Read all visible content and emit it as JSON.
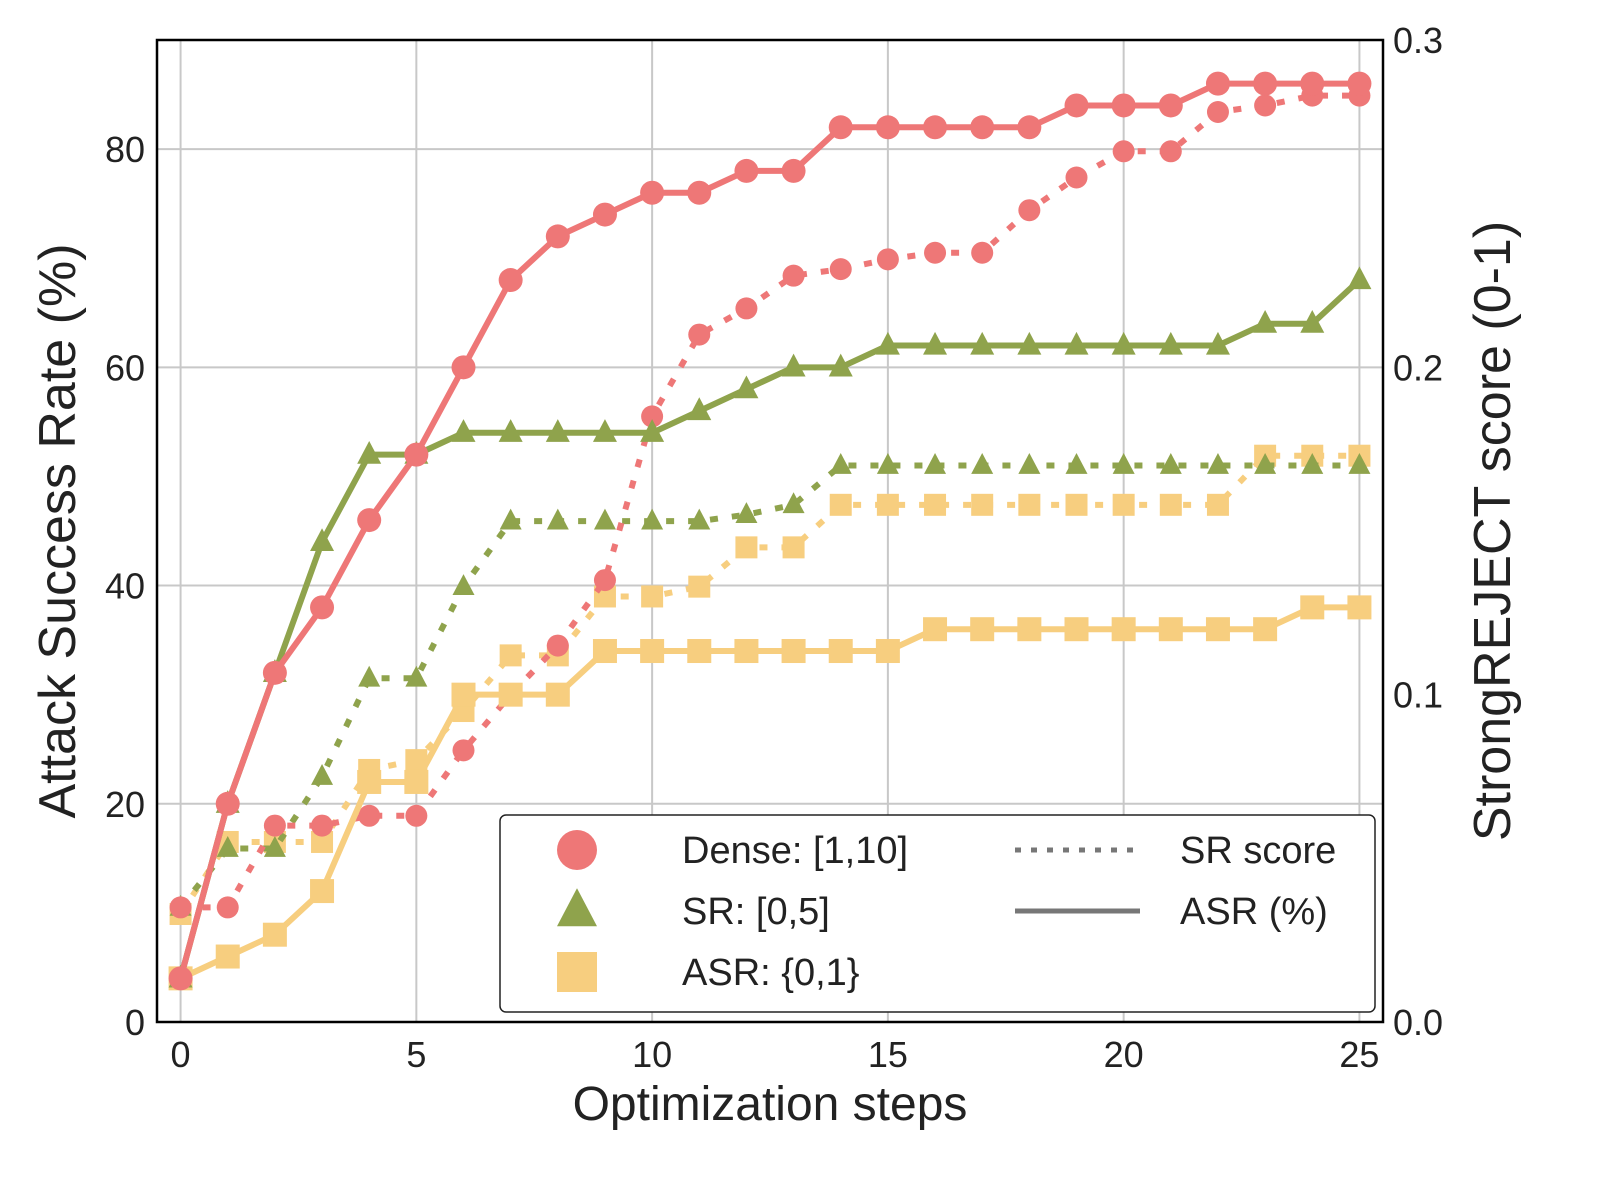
{
  "chart_data": {
    "type": "line",
    "title": "",
    "xlabel": "Optimization steps",
    "ylabel": "Attack Success Rate (%)",
    "ylabel_right": "StrongREJECT score (0-1)",
    "xlim": [
      -0.5,
      25.5
    ],
    "ylim": [
      0,
      90
    ],
    "ylim_right": [
      0,
      0.3
    ],
    "xticks": [
      0,
      5,
      10,
      15,
      20,
      25
    ],
    "yticks": [
      0,
      20,
      40,
      60,
      80
    ],
    "yticks_right": [
      "0.0",
      "0.1",
      "0.2",
      "0.3"
    ],
    "grid": true,
    "legend_placement": "lower-right",
    "x": [
      0,
      1,
      2,
      3,
      4,
      5,
      6,
      7,
      8,
      9,
      10,
      11,
      12,
      13,
      14,
      15,
      16,
      17,
      18,
      19,
      20,
      21,
      22,
      23,
      24,
      25
    ],
    "series": [
      {
        "name": "Dense: [1,10]",
        "metric": "ASR (%)",
        "axis": "left",
        "style": "solid",
        "marker": "circle",
        "color": "#EE7777",
        "values": [
          4,
          20,
          32,
          38,
          46,
          52,
          60,
          68,
          72,
          74,
          76,
          76,
          78,
          78,
          82,
          82,
          82,
          82,
          82,
          84,
          84,
          84,
          86,
          86,
          86,
          86
        ]
      },
      {
        "name": "SR: [0,5]",
        "metric": "ASR (%)",
        "axis": "left",
        "style": "solid",
        "marker": "triangle",
        "color": "#8FA34C",
        "values": [
          4,
          20,
          32,
          44,
          52,
          52,
          54,
          54,
          54,
          54,
          54,
          56,
          58,
          60,
          60,
          62,
          62,
          62,
          62,
          62,
          62,
          62,
          62,
          64,
          64,
          68
        ]
      },
      {
        "name": "ASR: {0,1}",
        "metric": "ASR (%)",
        "axis": "left",
        "style": "solid",
        "marker": "square",
        "color": "#F7CE7F",
        "values": [
          4,
          6,
          8,
          12,
          22,
          22,
          30,
          30,
          30,
          34,
          34,
          34,
          34,
          34,
          34,
          34,
          36,
          36,
          36,
          36,
          36,
          36,
          36,
          36,
          38,
          38
        ]
      },
      {
        "name": "Dense: [1,10]",
        "metric": "SR score",
        "axis": "right",
        "style": "dotted",
        "marker": "circle",
        "color": "#EE7777",
        "values": [
          0.035,
          0.035,
          0.06,
          0.06,
          0.063,
          0.063,
          0.083,
          0.1,
          0.115,
          0.135,
          0.185,
          0.21,
          0.218,
          0.228,
          0.23,
          0.233,
          0.235,
          0.235,
          0.248,
          0.258,
          0.266,
          0.266,
          0.278,
          0.28,
          0.283,
          0.283
        ]
      },
      {
        "name": "SR: [0,5]",
        "metric": "SR score",
        "axis": "right",
        "style": "dotted",
        "marker": "triangle",
        "color": "#8FA34C",
        "values": [
          0.035,
          0.053,
          0.053,
          0.075,
          0.105,
          0.105,
          0.133,
          0.153,
          0.153,
          0.153,
          0.153,
          0.153,
          0.155,
          0.158,
          0.17,
          0.17,
          0.17,
          0.17,
          0.17,
          0.17,
          0.17,
          0.17,
          0.17,
          0.17,
          0.17,
          0.17
        ]
      },
      {
        "name": "ASR: {0,1}",
        "metric": "SR score",
        "axis": "right",
        "style": "dotted",
        "marker": "square",
        "color": "#F7CE7F",
        "values": [
          0.033,
          0.055,
          0.055,
          0.055,
          0.077,
          0.08,
          0.095,
          0.112,
          0.112,
          0.13,
          0.13,
          0.133,
          0.145,
          0.145,
          0.158,
          0.158,
          0.158,
          0.158,
          0.158,
          0.158,
          0.158,
          0.158,
          0.158,
          0.173,
          0.173,
          0.173
        ]
      }
    ],
    "legend": {
      "markers": [
        {
          "label": "Dense: [1,10]",
          "marker": "circle",
          "color": "#EE7777"
        },
        {
          "label": "SR: [0,5]",
          "marker": "triangle",
          "color": "#8FA34C"
        },
        {
          "label": "ASR: {0,1}",
          "marker": "square",
          "color": "#F7CE7F"
        }
      ],
      "lines": [
        {
          "label": "SR score",
          "style": "dotted",
          "color": "#777777"
        },
        {
          "label": "ASR (%)",
          "style": "solid",
          "color": "#777777"
        }
      ]
    }
  }
}
